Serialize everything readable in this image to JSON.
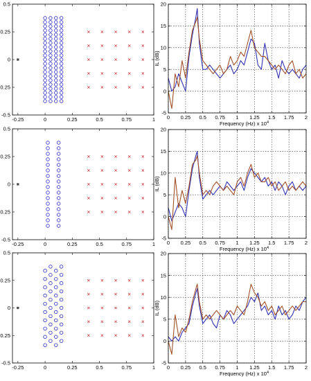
{
  "chart_data": [
    {
      "type": "scatter",
      "panel": "array-top",
      "xlim": [
        -0.3,
        1.0
      ],
      "ylim": [
        -0.5,
        0.5
      ],
      "xticks": [
        "-0.25",
        "0",
        "0.25",
        "0.5",
        "0.75",
        "1"
      ],
      "yticks": [
        "-0.5",
        "-0.25",
        "0",
        "0.25",
        "0.5"
      ],
      "series": [
        {
          "marker": "circle",
          "color": "#2b2bcc",
          "x": [
            0,
            0.05,
            0.1,
            0.15
          ],
          "y_range": [
            -0.375,
            0.375
          ],
          "y_step": 0.0375
        },
        {
          "marker": "cross",
          "color": "#cc3333",
          "x": [
            0.4,
            0.525,
            0.65,
            0.775,
            0.9
          ],
          "y": [
            -0.25,
            -0.125,
            0,
            0.125,
            0.25
          ]
        },
        {
          "marker": "star",
          "color": "#333333",
          "x": [
            -0.25
          ],
          "y": [
            0
          ]
        }
      ]
    },
    {
      "type": "line",
      "panel": "il-top",
      "xlim": [
        0,
        2
      ],
      "ylim": [
        -5,
        20
      ],
      "xticks": [
        "0",
        "0.25",
        "0.5",
        "0.75",
        "1",
        "1.25",
        "1.5",
        "1.75",
        "2"
      ],
      "yticks": [
        "-5",
        "0",
        "5",
        "10",
        "15",
        "20"
      ],
      "ylabel": "IL (dB)",
      "xlabel": "Frequency (Hz)",
      "xlabel_exp": "x 10",
      "xlabel_sup": "4",
      "grid": true,
      "series": [
        {
          "color": "#3030b0",
          "x": [
            0,
            0.05,
            0.1,
            0.15,
            0.2,
            0.25,
            0.3,
            0.35,
            0.4,
            0.42,
            0.45,
            0.5,
            0.55,
            0.6,
            0.65,
            0.7,
            0.75,
            0.8,
            0.85,
            0.9,
            0.95,
            1.0,
            1.05,
            1.1,
            1.15,
            1.2,
            1.25,
            1.3,
            1.35,
            1.4,
            1.45,
            1.5,
            1.55,
            1.6,
            1.65,
            1.7,
            1.75,
            1.8,
            1.85,
            1.9,
            1.95,
            2.0
          ],
          "y": [
            3,
            0,
            1,
            4,
            2,
            0,
            8,
            13,
            17,
            19,
            11,
            5,
            5,
            6,
            5,
            4,
            3,
            4,
            5,
            6,
            4,
            5,
            7,
            6,
            9,
            12,
            11,
            6,
            5,
            11,
            7,
            5,
            6,
            3,
            7,
            5,
            4,
            5,
            4,
            3,
            5,
            6
          ]
        },
        {
          "color": "#a05028",
          "x": [
            0,
            0.05,
            0.1,
            0.15,
            0.2,
            0.25,
            0.3,
            0.35,
            0.4,
            0.42,
            0.45,
            0.5,
            0.55,
            0.6,
            0.65,
            0.7,
            0.75,
            0.8,
            0.85,
            0.9,
            0.95,
            1.0,
            1.05,
            1.1,
            1.15,
            1.2,
            1.25,
            1.3,
            1.35,
            1.4,
            1.45,
            1.5,
            1.55,
            1.6,
            1.65,
            1.7,
            1.75,
            1.8,
            1.85,
            1.9,
            1.95,
            2.0
          ],
          "y": [
            0,
            -4,
            4,
            1,
            7,
            3,
            9,
            14,
            16,
            17,
            12,
            7,
            6,
            5,
            4,
            5,
            6,
            4,
            5,
            8,
            6,
            7,
            9,
            8,
            11,
            14,
            10,
            9,
            8,
            8,
            7,
            6,
            5,
            6,
            5,
            4,
            6,
            7,
            4,
            5,
            3,
            4
          ]
        }
      ]
    },
    {
      "type": "scatter",
      "panel": "array-middle",
      "xlim": [
        -0.3,
        1.0
      ],
      "ylim": [
        -0.5,
        0.5
      ],
      "xticks": [
        "-0.25",
        "0",
        "0.25",
        "0.5",
        "0.75",
        "1"
      ],
      "yticks": [
        "-0.5",
        "-0.25",
        "0",
        "0.25",
        "0.5"
      ],
      "series": [
        {
          "marker": "circle",
          "color": "#2b2bcc",
          "x": [
            0.025,
            0.125
          ],
          "y_range": [
            -0.375,
            0.375
          ],
          "y_step": 0.05
        },
        {
          "marker": "cross",
          "color": "#cc3333",
          "x": [
            0.4,
            0.525,
            0.65,
            0.775,
            0.9
          ],
          "y": [
            -0.25,
            -0.125,
            0,
            0.125,
            0.25
          ]
        },
        {
          "marker": "star",
          "color": "#333333",
          "x": [
            -0.25
          ],
          "y": [
            0
          ]
        }
      ]
    },
    {
      "type": "line",
      "panel": "il-middle",
      "xlim": [
        0,
        2
      ],
      "ylim": [
        -5,
        20
      ],
      "xticks": [
        "0",
        "0.25",
        "0.5",
        "0.75",
        "1",
        "1.25",
        "1.5",
        "1.75",
        "2"
      ],
      "yticks": [
        "-5",
        "0",
        "5",
        "10",
        "15",
        "20"
      ],
      "ylabel": "IL (dB)",
      "xlabel": "Frequency (Hz)",
      "xlabel_exp": "x 10",
      "xlabel_sup": "4",
      "grid": true,
      "series": [
        {
          "color": "#3030b0",
          "x": [
            0,
            0.05,
            0.1,
            0.15,
            0.2,
            0.25,
            0.3,
            0.35,
            0.4,
            0.42,
            0.45,
            0.5,
            0.55,
            0.6,
            0.65,
            0.7,
            0.75,
            0.8,
            0.85,
            0.9,
            0.95,
            1.0,
            1.05,
            1.1,
            1.15,
            1.2,
            1.25,
            1.3,
            1.35,
            1.4,
            1.45,
            1.5,
            1.55,
            1.6,
            1.65,
            1.7,
            1.75,
            1.8,
            1.85,
            1.9,
            1.95,
            2.0
          ],
          "y": [
            2,
            -1,
            1,
            3,
            2,
            0,
            6,
            11,
            14,
            15,
            9,
            4,
            5,
            6,
            5,
            6,
            7,
            6,
            8,
            7,
            6,
            7,
            8,
            6,
            9,
            11,
            10,
            9,
            8,
            9,
            7,
            8,
            6,
            8,
            7,
            5,
            7,
            8,
            6,
            7,
            6,
            7
          ]
        },
        {
          "color": "#a05028",
          "x": [
            0,
            0.05,
            0.1,
            0.15,
            0.2,
            0.25,
            0.3,
            0.35,
            0.4,
            0.42,
            0.45,
            0.5,
            0.55,
            0.6,
            0.65,
            0.7,
            0.75,
            0.8,
            0.85,
            0.9,
            0.95,
            1.0,
            1.05,
            1.1,
            1.15,
            1.2,
            1.25,
            1.3,
            1.35,
            1.4,
            1.45,
            1.5,
            1.55,
            1.6,
            1.65,
            1.7,
            1.75,
            1.8,
            1.85,
            1.9,
            1.95,
            2.0
          ],
          "y": [
            0,
            -3,
            9,
            2,
            6,
            3,
            7,
            12,
            13,
            14,
            10,
            5,
            6,
            5,
            7,
            8,
            7,
            6,
            7,
            6,
            5,
            8,
            9,
            7,
            10,
            12,
            9,
            10,
            8,
            8,
            9,
            7,
            8,
            6,
            7,
            8,
            6,
            7,
            6,
            7,
            8,
            7
          ]
        }
      ]
    },
    {
      "type": "scatter",
      "panel": "array-bottom",
      "xlim": [
        -0.3,
        1.0
      ],
      "ylim": [
        -0.5,
        0.5
      ],
      "xticks": [
        "-0.25",
        "0",
        "0.25",
        "0.5",
        "0.75",
        "1"
      ],
      "yticks": [
        "-0.5",
        "-0.25",
        "0",
        "0.25",
        "0.5"
      ],
      "series": [
        {
          "marker": "circle",
          "color": "#2b2bcc",
          "x": [
            0,
            0.1
          ],
          "y_range": [
            -0.3375,
            0.3375
          ],
          "y_step": 0.075
        },
        {
          "marker": "circle",
          "color": "#2b2bcc",
          "x": [
            0.05,
            0.15
          ],
          "y_range": [
            -0.3,
            0.375
          ],
          "y_step": 0.075
        },
        {
          "marker": "cross",
          "color": "#cc3333",
          "x": [
            0.4,
            0.525,
            0.65,
            0.775,
            0.9
          ],
          "y": [
            -0.25,
            -0.125,
            0,
            0.125,
            0.25
          ]
        },
        {
          "marker": "star",
          "color": "#333333",
          "x": [
            -0.25
          ],
          "y": [
            0
          ]
        }
      ]
    },
    {
      "type": "line",
      "panel": "il-bottom",
      "xlim": [
        0,
        2
      ],
      "ylim": [
        -5,
        20
      ],
      "xticks": [
        "0",
        "0.25",
        "0.5",
        "0.75",
        "1",
        "1.25",
        "1.5",
        "1.75",
        "2"
      ],
      "yticks": [
        "-5",
        "0",
        "5",
        "10",
        "15",
        "20"
      ],
      "ylabel": "IL (dB)",
      "xlabel": "Frequency (Hz)",
      "xlabel_exp": "x 10",
      "xlabel_sup": "4",
      "grid": true,
      "series": [
        {
          "color": "#3030b0",
          "x": [
            0,
            0.05,
            0.1,
            0.15,
            0.2,
            0.25,
            0.3,
            0.35,
            0.4,
            0.42,
            0.45,
            0.5,
            0.55,
            0.6,
            0.65,
            0.7,
            0.75,
            0.8,
            0.85,
            0.9,
            0.95,
            1.0,
            1.05,
            1.1,
            1.15,
            1.2,
            1.25,
            1.3,
            1.35,
            1.4,
            1.45,
            1.5,
            1.55,
            1.6,
            1.65,
            1.7,
            1.75,
            1.8,
            1.85,
            1.9,
            1.95,
            2.0
          ],
          "y": [
            1,
            0,
            1,
            0,
            2,
            3,
            4,
            8,
            11,
            12,
            8,
            4,
            5,
            6,
            4,
            3,
            6,
            5,
            7,
            6,
            4,
            5,
            6,
            7,
            8,
            10,
            9,
            11,
            7,
            8,
            6,
            7,
            5,
            8,
            6,
            7,
            5,
            6,
            8,
            7,
            9,
            10
          ]
        },
        {
          "color": "#a05028",
          "x": [
            0,
            0.05,
            0.1,
            0.15,
            0.2,
            0.25,
            0.3,
            0.35,
            0.4,
            0.42,
            0.45,
            0.5,
            0.55,
            0.6,
            0.65,
            0.7,
            0.75,
            0.8,
            0.85,
            0.9,
            0.95,
            1.0,
            1.05,
            1.1,
            1.15,
            1.2,
            1.25,
            1.3,
            1.35,
            1.4,
            1.45,
            1.5,
            1.55,
            1.6,
            1.65,
            1.7,
            1.75,
            1.8,
            1.85,
            1.9,
            1.95,
            2.0
          ],
          "y": [
            0,
            -3,
            6,
            1,
            3,
            2,
            5,
            9,
            12,
            13,
            9,
            5,
            6,
            5,
            6,
            7,
            6,
            5,
            6,
            7,
            6,
            8,
            7,
            6,
            9,
            13,
            11,
            10,
            8,
            9,
            7,
            8,
            6,
            7,
            8,
            6,
            7,
            8,
            7,
            8,
            9,
            9
          ]
        }
      ]
    }
  ]
}
